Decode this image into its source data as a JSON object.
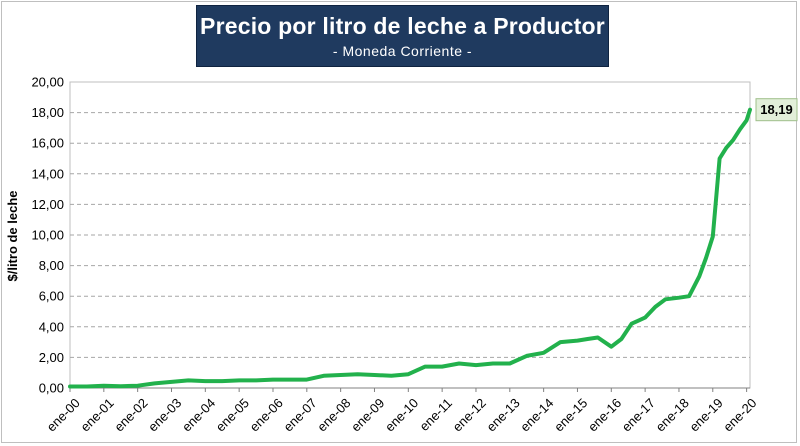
{
  "chart_data": {
    "type": "line",
    "title": "Precio por litro de leche a Productor",
    "subtitle": "- Moneda Corriente -",
    "xlabel": "",
    "ylabel": "$/litro de leche",
    "ylim": [
      0,
      20
    ],
    "yticks": [
      "0,00",
      "2,00",
      "4,00",
      "6,00",
      "8,00",
      "10,00",
      "12,00",
      "14,00",
      "16,00",
      "18,00",
      "20,00"
    ],
    "xticks": [
      "ene-00",
      "ene-01",
      "ene-02",
      "ene-03",
      "ene-04",
      "ene-05",
      "ene-06",
      "ene-07",
      "ene-08",
      "ene-09",
      "ene-10",
      "ene-11",
      "ene-12",
      "ene-13",
      "ene-14",
      "ene-15",
      "ene-16",
      "ene-17",
      "ene-18",
      "ene-19",
      "ene-20"
    ],
    "grid": true,
    "line_color": "#22b14c",
    "end_label": "18,19",
    "series": [
      {
        "x": [
          2000.0,
          2000.5,
          2001.0,
          2001.5,
          2002.0,
          2002.5,
          2003.0,
          2003.5,
          2004.0,
          2004.5,
          2005.0,
          2005.5,
          2006.0,
          2006.5,
          2007.0,
          2007.5,
          2008.0,
          2008.5,
          2009.0,
          2009.5,
          2010.0,
          2010.5,
          2011.0,
          2011.5,
          2012.0,
          2012.5,
          2013.0,
          2013.5,
          2014.0,
          2014.5,
          2015.0,
          2015.3,
          2015.6,
          2016.0,
          2016.3,
          2016.6,
          2017.0,
          2017.3,
          2017.6,
          2018.0,
          2018.3,
          2018.6,
          2018.8,
          2019.0,
          2019.2,
          2019.4,
          2019.6,
          2019.8,
          2020.0,
          2020.1
        ],
        "values": [
          0.1,
          0.1,
          0.15,
          0.12,
          0.15,
          0.3,
          0.4,
          0.5,
          0.45,
          0.45,
          0.5,
          0.5,
          0.55,
          0.55,
          0.55,
          0.8,
          0.85,
          0.9,
          0.85,
          0.8,
          0.9,
          1.4,
          1.4,
          1.6,
          1.5,
          1.6,
          1.6,
          2.1,
          2.3,
          3.0,
          3.1,
          3.2,
          3.3,
          2.7,
          3.2,
          4.2,
          4.6,
          5.3,
          5.8,
          5.9,
          6.0,
          7.3,
          8.5,
          9.9,
          15.0,
          15.7,
          16.2,
          16.9,
          17.5,
          18.19
        ]
      }
    ]
  }
}
